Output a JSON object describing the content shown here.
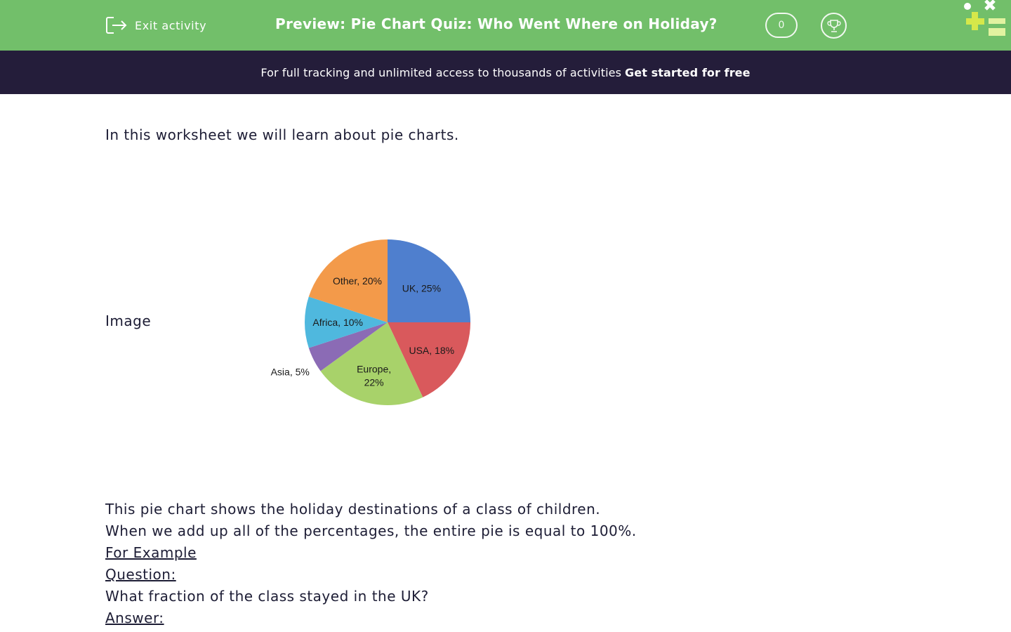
{
  "header": {
    "exit_label": "Exit activity",
    "title": "Preview: Pie Chart Quiz: Who Went Where on Holiday?",
    "score": "0"
  },
  "banner": {
    "text": "For full tracking and unlimited access to thousands of activities",
    "cta": "Get started for free"
  },
  "content": {
    "intro": "In this worksheet we will learn about pie charts.",
    "image_label": "Image",
    "line1": "This pie chart shows the holiday destinations of a class of children.",
    "line2": "When we add up all of the percentages, the entire pie is equal to 100%.",
    "for_example": "For Example",
    "question_label": "Question:",
    "question_text": "What fraction of the class stayed in the UK?",
    "answer_label": "Answer:"
  },
  "chart_data": {
    "type": "pie",
    "slices": [
      {
        "label": "UK, 25%",
        "value": 25,
        "color": "#4f7fce"
      },
      {
        "label": "USA, 18%",
        "value": 18,
        "color": "#d9595c"
      },
      {
        "label": "Europe, 22%",
        "value": 22,
        "color": "#a8d26a"
      },
      {
        "label": "Asia, 5%",
        "value": 5,
        "color": "#8b6bb5"
      },
      {
        "label": "Africa, 10%",
        "value": 10,
        "color": "#4fb8de"
      },
      {
        "label": "Other, 20%",
        "value": 20,
        "color": "#f39a4a"
      }
    ]
  },
  "colors": {
    "header_green": "#72bf6a",
    "banner_navy": "#241d3a"
  }
}
